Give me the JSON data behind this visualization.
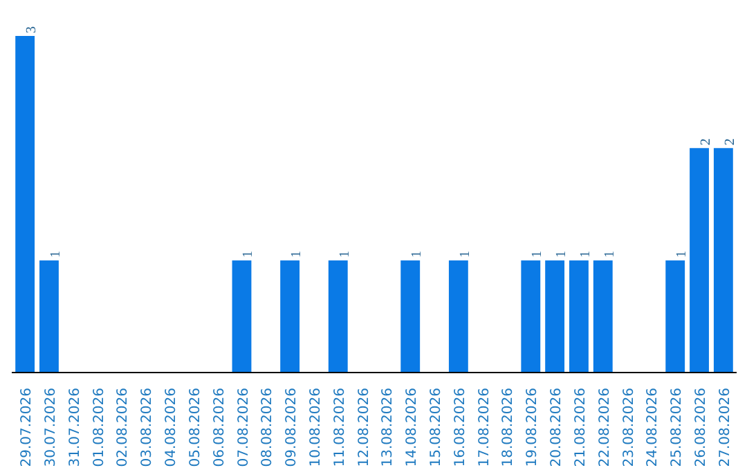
{
  "chart_data": {
    "type": "bar",
    "categories": [
      "29.07.2026",
      "30.07.2026",
      "31.07.2026",
      "01.08.2026",
      "02.08.2026",
      "03.08.2026",
      "04.08.2026",
      "05.08.2026",
      "06.08.2026",
      "07.08.2026",
      "08.08.2026",
      "09.08.2026",
      "10.08.2026",
      "11.08.2026",
      "12.08.2026",
      "13.08.2026",
      "14.08.2026",
      "15.08.2026",
      "16.08.2026",
      "17.08.2026",
      "18.08.2026",
      "19.08.2026",
      "20.08.2026",
      "21.08.2026",
      "22.08.2026",
      "23.08.2026",
      "24.08.2026",
      "25.08.2026",
      "26.08.2026",
      "27.08.2026"
    ],
    "values": [
      3,
      1,
      0,
      0,
      0,
      0,
      0,
      0,
      0,
      1,
      0,
      1,
      0,
      1,
      0,
      0,
      1,
      0,
      1,
      0,
      0,
      1,
      1,
      1,
      1,
      0,
      0,
      1,
      2,
      2
    ],
    "value_labels": [
      "3",
      "1",
      null,
      null,
      null,
      null,
      null,
      null,
      null,
      "1",
      null,
      "1",
      null,
      "1",
      null,
      null,
      "1",
      null,
      "1",
      null,
      null,
      "1",
      "1",
      "1",
      "1",
      null,
      null,
      "1",
      "2",
      "2"
    ],
    "color": "#0a7ae6"
  }
}
